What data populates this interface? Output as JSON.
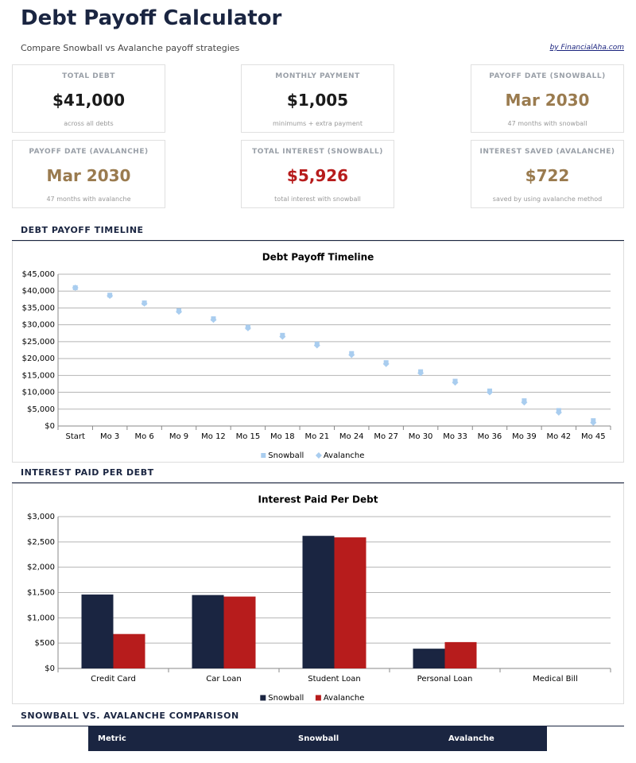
{
  "header": {
    "title": "Debt Payoff Calculator",
    "subtitle": "Compare Snowball vs Avalanche payoff strategies",
    "credit": "by FinancialAha.com"
  },
  "cards": [
    {
      "label": "TOTAL DEBT",
      "value": "$41,000",
      "note": "across all debts"
    },
    {
      "label": "MONTHLY PAYMENT",
      "value": "$1,005",
      "note": "minimums + extra payment"
    },
    {
      "label": "PAYOFF DATE (SNOWBALL)",
      "value": "Mar 2030",
      "note": "47 months with snowball"
    },
    {
      "label": "PAYOFF DATE (AVALANCHE)",
      "value": "Mar 2030",
      "note": "47 months with avalanche"
    },
    {
      "label": "TOTAL INTEREST (SNOWBALL)",
      "value": "$5,926",
      "note": "total interest with snowball"
    },
    {
      "label": "INTEREST SAVED (AVALANCHE)",
      "value": "$722",
      "note": "saved by using avalanche method"
    }
  ],
  "sections": [
    "DEBT PAYOFF TIMELINE",
    "INTEREST PAID PER DEBT",
    "SNOWBALL VS. AVALANCHE COMPARISON"
  ],
  "chart_data": [
    {
      "type": "scatter",
      "title": "Debt Payoff Timeline",
      "categories": [
        "Start",
        "Mo 3",
        "Mo 6",
        "Mo 9",
        "Mo 12",
        "Mo 15",
        "Mo 18",
        "Mo 21",
        "Mo 24",
        "Mo 27",
        "Mo 30",
        "Mo 33",
        "Mo 36",
        "Mo 39",
        "Mo 42",
        "Mo 45"
      ],
      "series": [
        {
          "name": "Snowball",
          "color": "#a9cdef",
          "values": [
            41000,
            38800,
            36500,
            34200,
            31800,
            29300,
            26900,
            24300,
            21500,
            18800,
            16100,
            13300,
            10400,
            7500,
            4600,
            1600
          ]
        },
        {
          "name": "Avalanche",
          "color": "#a9cdef",
          "values": [
            41000,
            38600,
            36300,
            33900,
            31500,
            29000,
            26500,
            23900,
            21100,
            18400,
            15700,
            12900,
            10000,
            7000,
            4000,
            1000
          ]
        }
      ],
      "ylim": [
        0,
        45000
      ],
      "yticks": [
        {
          "value": 0,
          "label": "$0"
        },
        {
          "value": 5000,
          "label": "$5,000"
        },
        {
          "value": 10000,
          "label": "$10,000"
        },
        {
          "value": 15000,
          "label": "$15,000"
        },
        {
          "value": 20000,
          "label": "$20,000"
        },
        {
          "value": 25000,
          "label": "$25,000"
        },
        {
          "value": 30000,
          "label": "$30,000"
        },
        {
          "value": 35000,
          "label": "$35,000"
        },
        {
          "value": 40000,
          "label": "$40,000"
        },
        {
          "value": 45000,
          "label": "$45,000"
        }
      ],
      "grid": true,
      "legend": "bottom"
    },
    {
      "type": "bar",
      "title": "Interest Paid Per Debt",
      "categories": [
        "Credit Card",
        "Car Loan",
        "Student Loan",
        "Personal Loan",
        "Medical Bill"
      ],
      "series": [
        {
          "name": "Snowball",
          "color": "#1a2541",
          "values": [
            1460,
            1450,
            2620,
            390,
            0
          ]
        },
        {
          "name": "Avalanche",
          "color": "#b71c1c",
          "values": [
            680,
            1420,
            2590,
            520,
            0
          ]
        }
      ],
      "ylim": [
        0,
        3000
      ],
      "yticks": [
        {
          "value": 0,
          "label": "$0"
        },
        {
          "value": 500,
          "label": "$500"
        },
        {
          "value": 1000,
          "label": "$1,000"
        },
        {
          "value": 1500,
          "label": "$1,500"
        },
        {
          "value": 2000,
          "label": "$2,000"
        },
        {
          "value": 2500,
          "label": "$2,500"
        },
        {
          "value": 3000,
          "label": "$3,000"
        }
      ],
      "grid": true,
      "legend": "bottom"
    }
  ],
  "table": {
    "columns": [
      "Metric",
      "Snowball",
      "Avalanche"
    ]
  }
}
